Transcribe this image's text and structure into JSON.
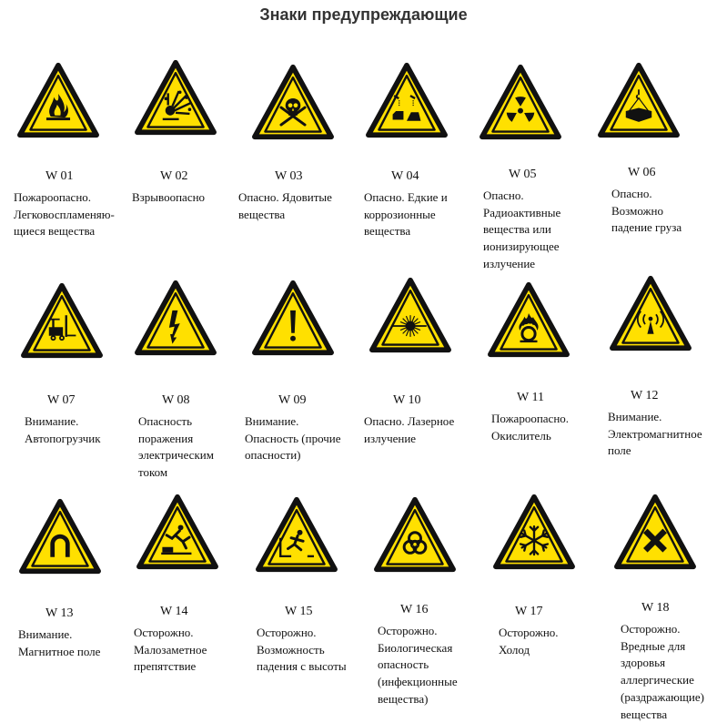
{
  "title": "Знаки предупреждающие",
  "colors": {
    "sign_yellow": "#ffe000",
    "sign_black": "#111111"
  },
  "signs": [
    {
      "code": "W 01",
      "lines": [
        "Пожароопасно.",
        "Легковоспламеняю-",
        "щиеся вещества"
      ],
      "icon": "flame-icon"
    },
    {
      "code": "W 02",
      "lines": [
        "Взрывоопасно"
      ],
      "icon": "explosion-icon"
    },
    {
      "code": "W 03",
      "lines": [
        "Опасно. Ядовитые",
        "вещества"
      ],
      "icon": "skull-crossbones-icon"
    },
    {
      "code": "W 04",
      "lines": [
        "Опасно. Едкие и",
        "коррозионные",
        " вещества"
      ],
      "icon": "corrosive-icon"
    },
    {
      "code": "W 05",
      "lines": [
        "Опасно.",
        "Радиоактивные",
        "вещества или",
        "ионизирующее",
        "излучение"
      ],
      "icon": "radiation-icon"
    },
    {
      "code": "W 06",
      "lines": [
        "Опасно.",
        "Возможно",
        "падение груза"
      ],
      "icon": "suspended-load-icon"
    },
    {
      "code": "W 07",
      "lines": [
        "Внимание.",
        "Автопогрузчик"
      ],
      "icon": "forklift-icon"
    },
    {
      "code": "W 08",
      "lines": [
        "Опасность",
        "поражения",
        "электрическим",
        "током"
      ],
      "icon": "lightning-icon"
    },
    {
      "code": "W 09",
      "lines": [
        "Внимание.",
        "Опасность (прочие",
        "опасности)"
      ],
      "icon": "exclamation-icon"
    },
    {
      "code": "W 10",
      "lines": [
        "Опасно. Лазерное",
        "излучение"
      ],
      "icon": "laser-icon"
    },
    {
      "code": "W 11",
      "lines": [
        "Пожароопасно.",
        "Окислитель"
      ],
      "icon": "oxidizer-icon"
    },
    {
      "code": "W 12",
      "lines": [
        "Внимание.",
        "Электромагнитное",
        "поле"
      ],
      "icon": "electromagnetic-icon"
    },
    {
      "code": "W 13",
      "lines": [
        "Внимание.",
        "Магнитное поле"
      ],
      "icon": "magnet-icon"
    },
    {
      "code": "W 14",
      "lines": [
        "Осторожно.",
        "Малозаметное",
        "препятствие"
      ],
      "icon": "trip-hazard-icon"
    },
    {
      "code": "W 15",
      "lines": [
        "Осторожно.",
        "Возможность",
        "падения с высоты"
      ],
      "icon": "fall-hazard-icon"
    },
    {
      "code": "W 16",
      "lines": [
        "Осторожно.",
        "Биологическая",
        "опасность",
        "(инфекционные",
        "вещества)"
      ],
      "icon": "biohazard-icon"
    },
    {
      "code": "W 17",
      "lines": [
        "Осторожно.",
        "Холод"
      ],
      "icon": "snowflake-icon"
    },
    {
      "code": "W 18",
      "lines": [
        "Осторожно.",
        "Вредные для",
        "здоровья",
        "аллергические",
        "(раздражающие)",
        "вещества"
      ],
      "icon": "harmful-cross-icon"
    }
  ]
}
